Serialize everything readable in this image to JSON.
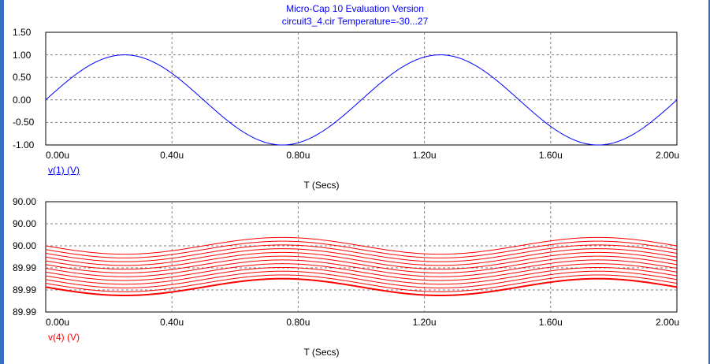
{
  "title_line1": "Micro-Cap 10 Evaluation Version",
  "title_line2": "circuit3_4.cir Temperature=-30...27",
  "colors": {
    "series1": "#0000ff",
    "series2": "#ff0000",
    "grid": "#7f7f7f",
    "frame": "#3a6fc8"
  },
  "chart_data": [
    {
      "type": "line",
      "xlabel": "T (Secs)",
      "ylabel": "v(1) (V)",
      "xlim": [
        0,
        2.0
      ],
      "ylim": [
        -1.0,
        1.5
      ],
      "x_ticks": [
        "0.00u",
        "0.40u",
        "0.80u",
        "1.20u",
        "1.60u",
        "2.00u"
      ],
      "y_ticks": [
        "1.50",
        "1.00",
        "0.50",
        "0.00",
        "-0.50",
        "-1.00"
      ],
      "grid": true,
      "series": [
        {
          "name": "v(1) (V)",
          "amplitude": 1.0,
          "period_us": 1.0,
          "offset": 0.0
        }
      ]
    },
    {
      "type": "line",
      "xlabel": "T (Secs)",
      "ylabel": "v(4) (V)",
      "xlim": [
        0,
        2.0
      ],
      "ylim": [
        89.985,
        90.01
      ],
      "x_ticks": [
        "0.00u",
        "0.40u",
        "0.80u",
        "1.20u",
        "1.60u",
        "2.00u"
      ],
      "y_ticks": [
        "90.00",
        "90.00",
        "90.00",
        "89.99",
        "89.99",
        "89.99"
      ],
      "grid": true,
      "series": [
        {
          "name": "v(4) (V)",
          "curve_count": 12,
          "period_us": 1.0,
          "amplitude": 0.0019,
          "offset_top": 90.0,
          "offset_step": -0.00085
        }
      ]
    }
  ]
}
